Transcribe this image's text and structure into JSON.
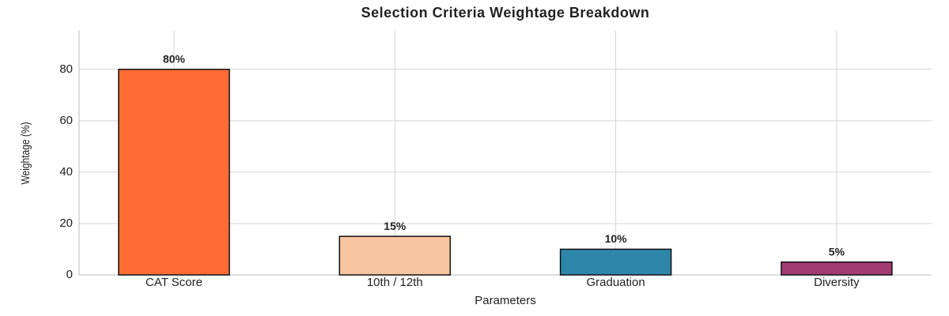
{
  "chart_data": {
    "type": "bar",
    "title": "Selection Criteria Weightage Breakdown",
    "x_label": "Parameters",
    "y_label": "Weightage (%)",
    "categories": [
      "CAT Score",
      "10th / 12th",
      "Graduation",
      "Diversity"
    ],
    "values": [
      80,
      15,
      10,
      5
    ],
    "value_labels": [
      "80%",
      "15%",
      "10%",
      "5%"
    ],
    "colors": [
      "#ff6b35",
      "#f7c59f",
      "#2e86ab",
      "#a23b72"
    ],
    "ylim": [
      0,
      95
    ],
    "yticks": [
      0,
      20,
      40,
      60,
      80
    ],
    "grid": true
  }
}
